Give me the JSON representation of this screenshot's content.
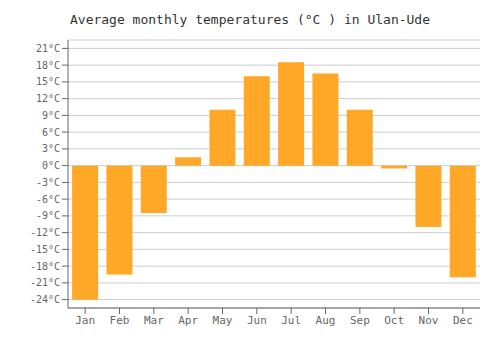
{
  "chart_data": {
    "type": "bar",
    "title": "Average monthly temperatures (°C ) in Ulan-Ude",
    "categories": [
      "Jan",
      "Feb",
      "Mar",
      "Apr",
      "May",
      "Jun",
      "Jul",
      "Aug",
      "Sep",
      "Oct",
      "Nov",
      "Dec"
    ],
    "values": [
      -24,
      -19.5,
      -8.5,
      1.5,
      10,
      16,
      18.5,
      16.5,
      10,
      -0.5,
      -11,
      -20
    ],
    "color": "#FFA726",
    "ylim": [
      -25.5,
      22.5
    ],
    "yticks": [
      {
        "value": -24,
        "label": "-24°C"
      },
      {
        "value": -21,
        "label": "-21°C"
      },
      {
        "value": -18,
        "label": "-18°C"
      },
      {
        "value": -15,
        "label": "-15°C"
      },
      {
        "value": -12,
        "label": "-12°C"
      },
      {
        "value": -9,
        "label": "-9°C"
      },
      {
        "value": -6,
        "label": "-6°C"
      },
      {
        "value": -3,
        "label": "-3°C"
      },
      {
        "value": 0,
        "label": "0°C"
      },
      {
        "value": 3,
        "label": "3°C"
      },
      {
        "value": 6,
        "label": "6°C"
      },
      {
        "value": 9,
        "label": "9°C"
      },
      {
        "value": 12,
        "label": "12°C"
      },
      {
        "value": 15,
        "label": "15°C"
      },
      {
        "value": 18,
        "label": "18°C"
      },
      {
        "value": 21,
        "label": "21°C"
      }
    ],
    "grid": true
  }
}
